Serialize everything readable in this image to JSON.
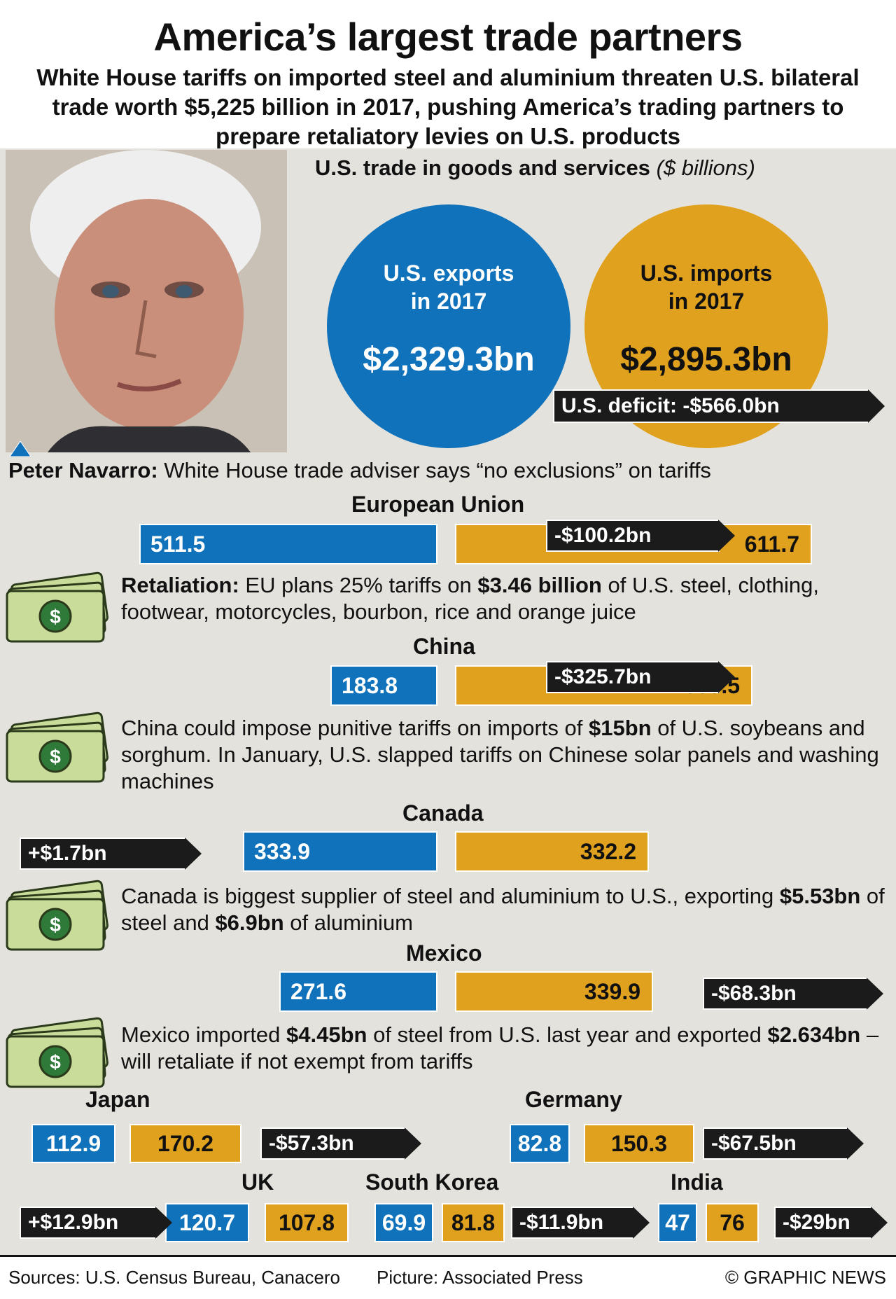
{
  "title": "America’s largest trade partners",
  "subtitle": "White House tariffs on imported steel and aluminium threaten U.S. bilateral trade worth $5,225 billion in 2017, pushing America’s trading partners to prepare retaliatory levies on U.S. products",
  "section": {
    "title": "U.S. trade in goods and services",
    "unit": "($ billions)"
  },
  "exports": {
    "label1": "U.S. exports",
    "label2": "in 2017",
    "value": "$2,329.3bn"
  },
  "imports": {
    "label1": "U.S. imports",
    "label2": "in 2017",
    "value": "$2,895.3bn"
  },
  "deficit": "U.S. deficit: -$566.0bn",
  "navarro": {
    "name": "Peter Navarro:",
    "text": " White House trade adviser says “no exclusions” on tariffs"
  },
  "colors": {
    "exports": "#0f72bb",
    "imports": "#e0a21e",
    "balance": "#1b1b1b",
    "panel": "#e4e2dd"
  },
  "chart_data": {
    "type": "bar",
    "series": [
      {
        "name": "U.S. exports",
        "color": "#0f72bb"
      },
      {
        "name": "U.S. imports",
        "color": "#e0a21e"
      }
    ],
    "countries": [
      {
        "name": "European Union",
        "exports": 511.5,
        "imports": 611.7,
        "balance": "-$100.2bn",
        "exp_label": "511.5",
        "imp_label": "611.7"
      },
      {
        "name": "China",
        "exports": 183.8,
        "imports": 509.5,
        "balance": "-$325.7bn",
        "exp_label": "183.8",
        "imp_label": "509.5"
      },
      {
        "name": "Canada",
        "exports": 333.9,
        "imports": 332.2,
        "balance": "+$1.7bn",
        "exp_label": "333.9",
        "imp_label": "332.2"
      },
      {
        "name": "Mexico",
        "exports": 271.6,
        "imports": 339.9,
        "balance": "-$68.3bn",
        "exp_label": "271.6",
        "imp_label": "339.9"
      },
      {
        "name": "Japan",
        "exports": 112.9,
        "imports": 170.2,
        "balance": "-$57.3bn",
        "exp_label": "112.9",
        "imp_label": "170.2"
      },
      {
        "name": "Germany",
        "exports": 82.8,
        "imports": 150.3,
        "balance": "-$67.5bn",
        "exp_label": "82.8",
        "imp_label": "150.3"
      },
      {
        "name": "UK",
        "exports": 120.7,
        "imports": 107.8,
        "balance": "+$12.9bn",
        "exp_label": "120.7",
        "imp_label": "107.8"
      },
      {
        "name": "South Korea",
        "exports": 69.9,
        "imports": 81.8,
        "balance": "-$11.9bn",
        "exp_label": "69.9",
        "imp_label": "81.8"
      },
      {
        "name": "India",
        "exports": 47,
        "imports": 76,
        "balance": "-$29bn",
        "exp_label": "47",
        "imp_label": "76"
      }
    ]
  },
  "notes": {
    "eu": [
      "Retaliation:",
      " EU plans 25% tariffs on ",
      "$3.46 billion",
      " of U.S. steel, clothing, footwear, motorcycles, bourbon, rice and orange juice"
    ],
    "china": [
      "China could impose punitive tariffs on imports of ",
      "$15bn",
      " of U.S. soybeans and sorghum. In January, U.S. slapped tariffs on Chinese solar panels and washing machines"
    ],
    "canada": [
      "Canada is biggest supplier of steel and aluminium to U.S., exporting ",
      "$5.53bn",
      " of steel and ",
      "$6.9bn",
      " of aluminium"
    ],
    "mexico": [
      "Mexico imported ",
      "$4.45bn",
      " of steel from U.S. last year and exported ",
      "$2.634bn",
      " – will retaliate if not exempt from tariffs"
    ]
  },
  "footer": {
    "sources": "Sources: U.S. Census Bureau, Canacero",
    "picture": "Picture: Associated Press",
    "credit": "© GRAPHIC NEWS"
  }
}
